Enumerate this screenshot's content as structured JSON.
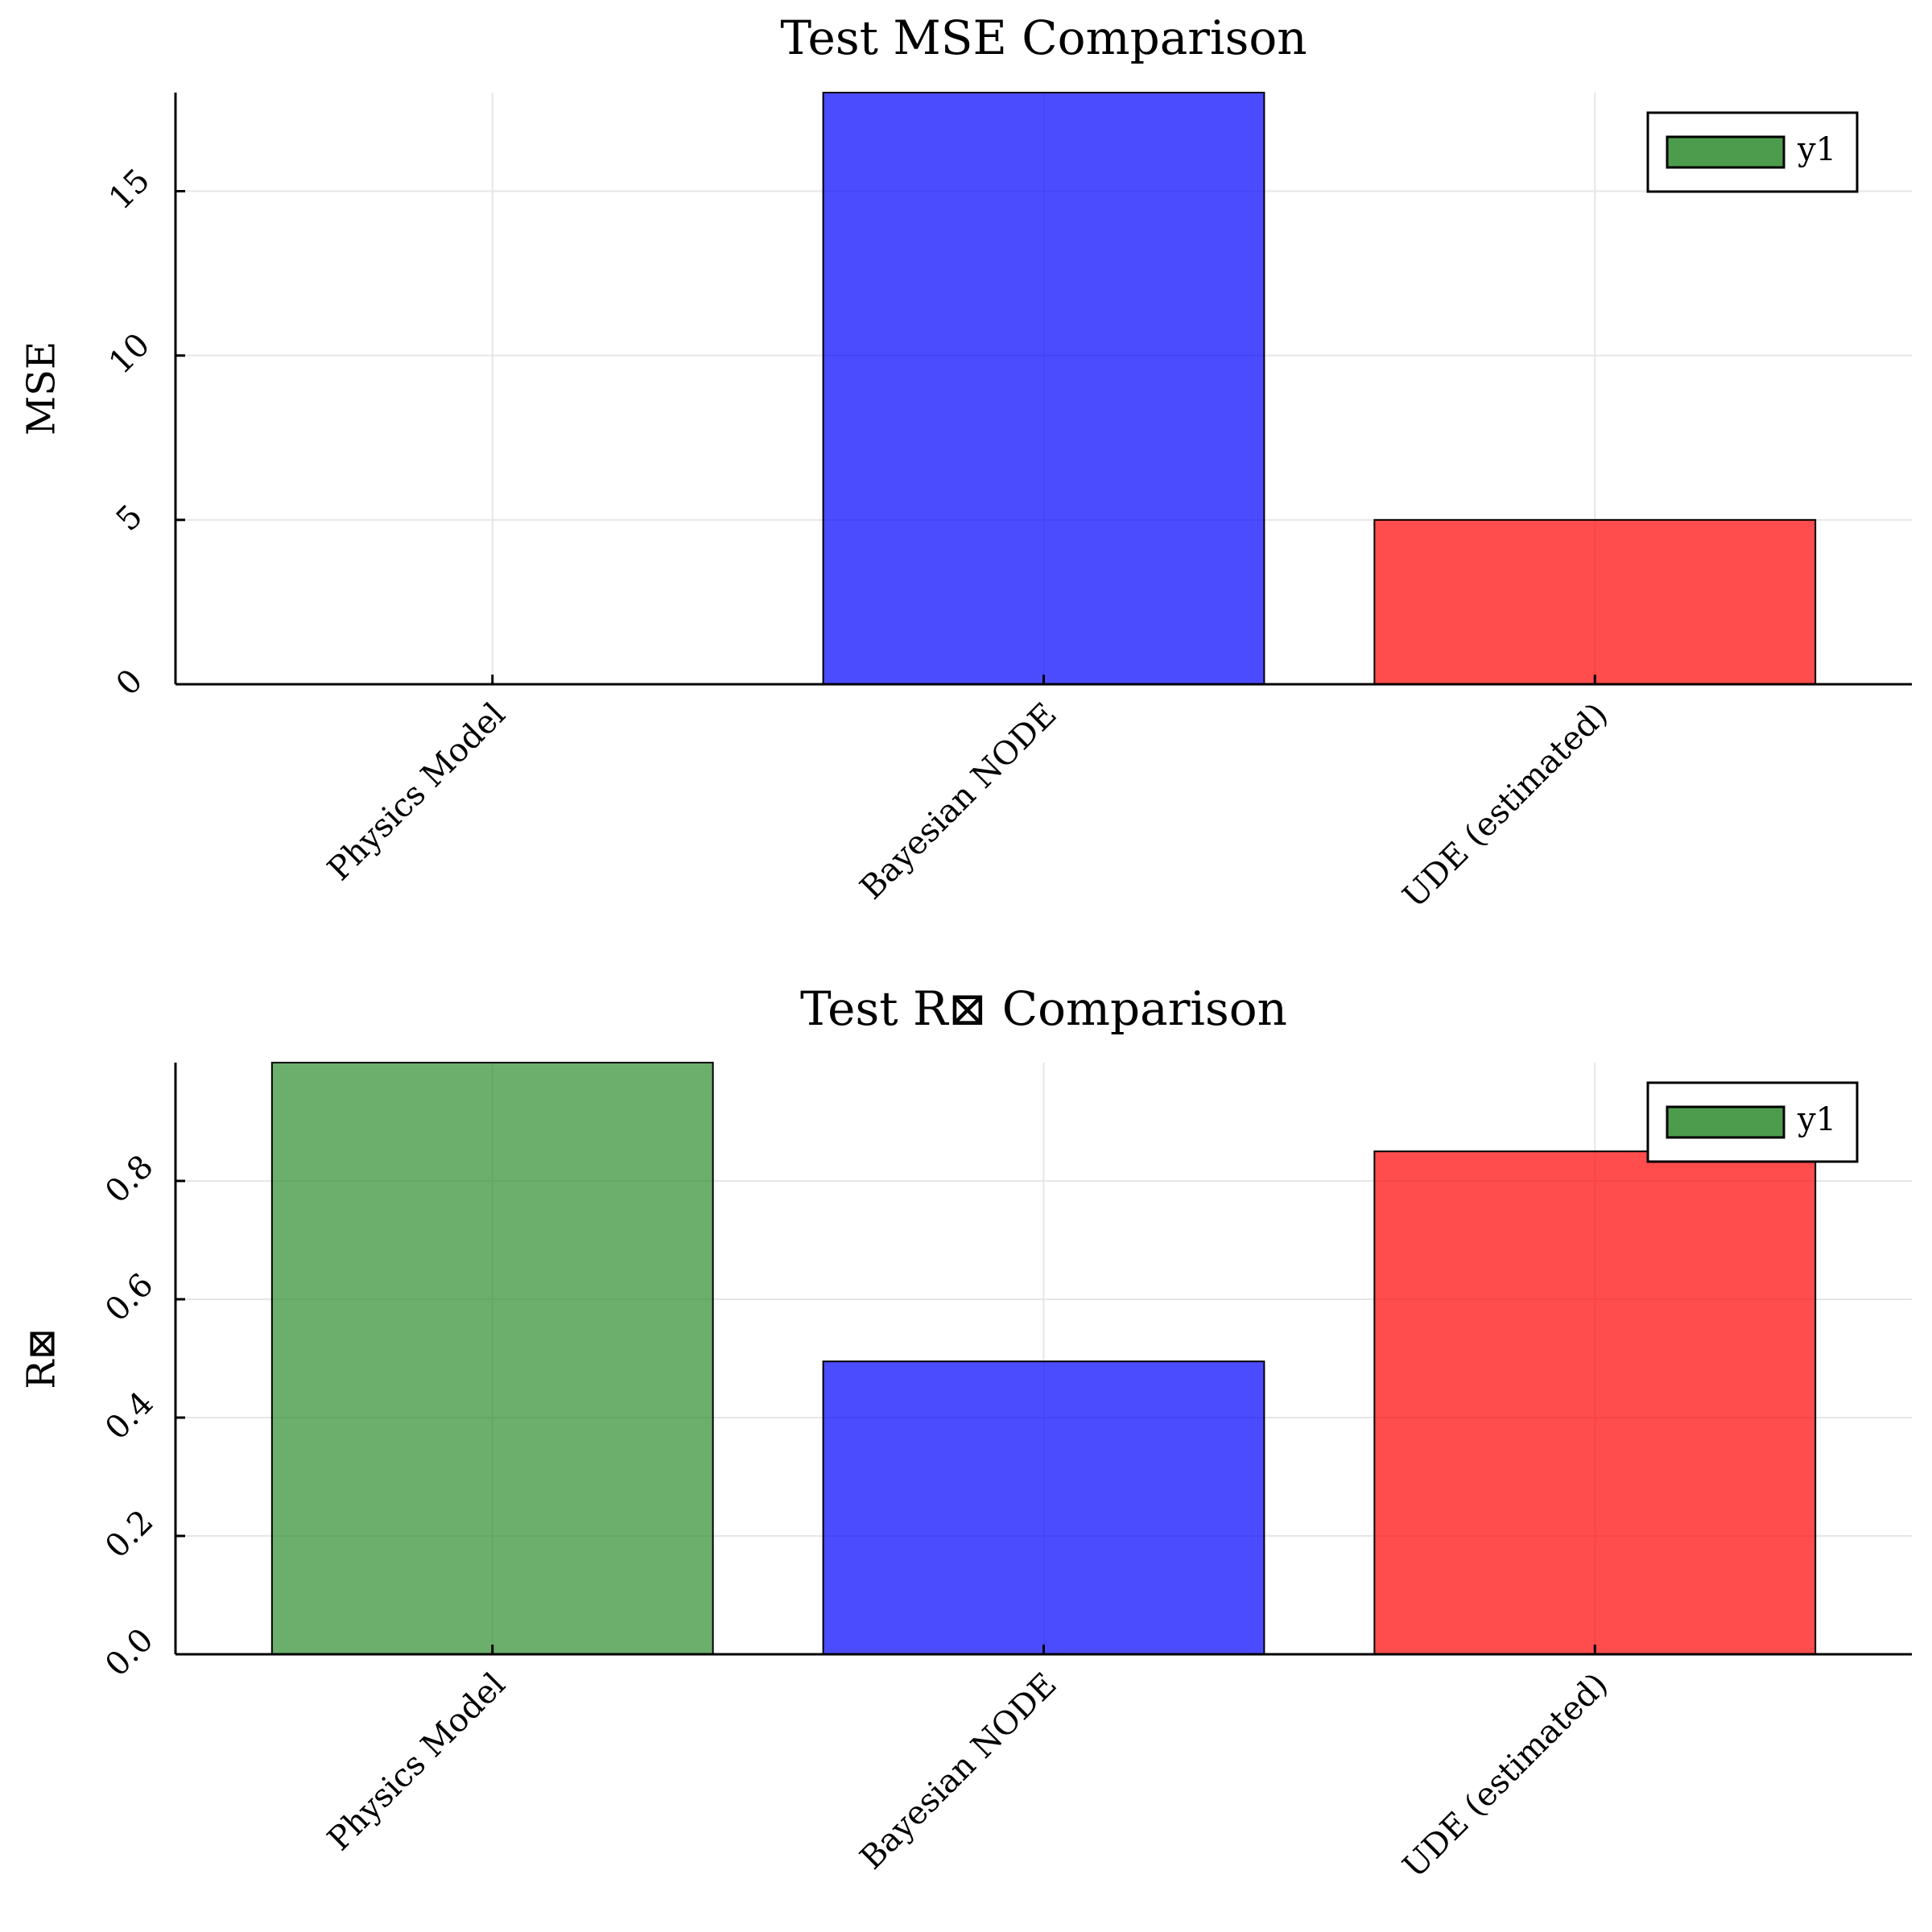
{
  "chart_data": [
    {
      "type": "bar",
      "title": "Test MSE Comparison",
      "xlabel": "",
      "ylabel": "MSE",
      "categories": [
        "Physics Model",
        "Bayesian NODE",
        "UDE (estimated)"
      ],
      "values": [
        0.0,
        18.0,
        5.0
      ],
      "colors": [
        "#2e8b2e",
        "#0000ff",
        "#ff0000"
      ],
      "ylim": [
        0,
        18
      ],
      "yticks": [
        0,
        5,
        10,
        15
      ],
      "ytick_labels": [
        "0",
        "5",
        "10",
        "15"
      ],
      "grid": true,
      "legend": {
        "position": "top-right",
        "entries": [
          {
            "label": "y1",
            "color": "#2e8b2e"
          }
        ]
      }
    },
    {
      "type": "bar",
      "title": "Test R⊠ Comparison",
      "xlabel": "",
      "ylabel": "R⊠",
      "categories": [
        "Physics Model",
        "Bayesian NODE",
        "UDE (estimated)"
      ],
      "values": [
        1.0,
        0.495,
        0.85
      ],
      "colors": [
        "#2e8b2e",
        "#0000ff",
        "#ff0000"
      ],
      "ylim": [
        0,
        1.0
      ],
      "yticks": [
        0.0,
        0.2,
        0.4,
        0.6,
        0.8
      ],
      "ytick_labels": [
        "0.0",
        "0.2",
        "0.4",
        "0.6",
        "0.8"
      ],
      "grid": true,
      "legend": {
        "position": "top-right",
        "entries": [
          {
            "label": "y1",
            "color": "#2e8b2e"
          }
        ]
      }
    }
  ]
}
